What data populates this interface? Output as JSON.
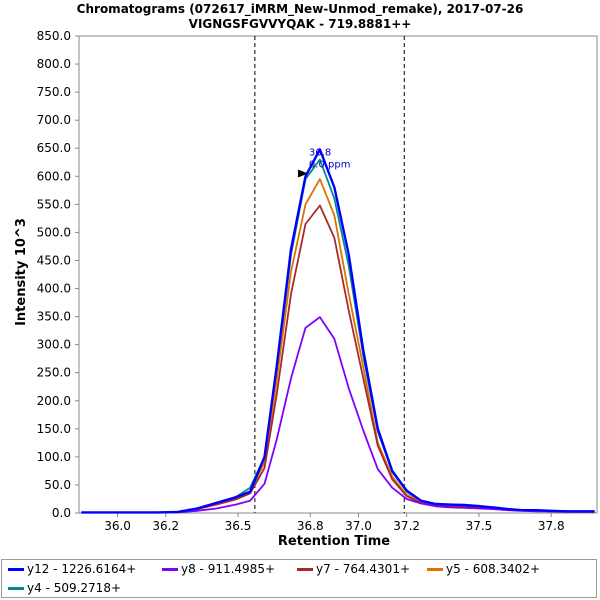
{
  "chart_data": {
    "type": "line",
    "title": "Chromatograms (072617_iMRM_New-Unmod_remake), 2017-07-26",
    "subtitle": "VIGNGSFGVVYQAK - 719.8881++",
    "xlabel": "Retention Time",
    "ylabel": "Intensity 10^3",
    "xlim": [
      35.84,
      37.99
    ],
    "ylim": [
      0,
      850
    ],
    "x_ticks": [
      "36.0",
      "36.2",
      "36.5",
      "36.8",
      "37.0",
      "37.2",
      "37.5",
      "37.8"
    ],
    "x_tick_values": [
      36.0,
      36.2,
      36.5,
      36.8,
      37.0,
      37.2,
      37.5,
      37.8
    ],
    "y_ticks": [
      "0.0",
      "50.0",
      "100.0",
      "150.0",
      "200.0",
      "250.0",
      "300.0",
      "350.0",
      "400.0",
      "450.0",
      "500.0",
      "550.0",
      "600.0",
      "650.0",
      "700.0",
      "750.0",
      "800.0",
      "850.0"
    ],
    "y_tick_values": [
      0,
      50,
      100,
      150,
      200,
      250,
      300,
      350,
      400,
      450,
      500,
      550,
      600,
      650,
      700,
      750,
      800,
      850
    ],
    "vlines": [
      36.57,
      37.19
    ],
    "grid": false,
    "annotation": {
      "x": 36.84,
      "y": 605,
      "lines": [
        "36.8",
        "0.0 ppm"
      ]
    },
    "x": [
      35.85,
      35.93,
      36.01,
      36.09,
      36.17,
      36.25,
      36.33,
      36.41,
      36.49,
      36.55,
      36.61,
      36.66,
      36.72,
      36.78,
      36.84,
      36.9,
      36.96,
      37.02,
      37.08,
      37.14,
      37.2,
      37.26,
      37.32,
      37.38,
      37.44,
      37.5,
      37.56,
      37.62,
      37.68,
      37.74,
      37.8,
      37.86,
      37.92,
      37.98
    ],
    "series": [
      {
        "name": "y12 - 1226.6164+",
        "color": "#0000ff",
        "values": [
          1,
          1,
          1,
          1,
          1,
          2,
          8,
          18,
          28,
          38,
          100,
          260,
          470,
          600,
          648,
          580,
          460,
          290,
          150,
          75,
          40,
          22,
          16,
          15,
          14,
          12,
          10,
          7,
          5,
          5,
          4,
          3,
          3,
          3
        ]
      },
      {
        "name": "y8 - 911.4985+",
        "color": "#8000ff",
        "values": [
          1,
          1,
          1,
          1,
          1,
          1,
          4,
          8,
          15,
          22,
          52,
          130,
          240,
          330,
          349,
          310,
          222,
          147,
          78,
          45,
          25,
          17,
          12,
          10,
          9,
          8,
          7,
          5,
          4,
          3,
          3,
          2,
          2,
          2
        ]
      },
      {
        "name": "y7 - 764.4301+",
        "color": "#a52a2a",
        "values": [
          1,
          1,
          1,
          1,
          1,
          2,
          7,
          15,
          24,
          35,
          80,
          210,
          390,
          515,
          548,
          490,
          360,
          240,
          120,
          60,
          30,
          18,
          13,
          12,
          11,
          10,
          8,
          6,
          5,
          4,
          3,
          3,
          2,
          2
        ]
      },
      {
        "name": "y5 - 608.3402+",
        "color": "#e07000",
        "values": [
          1,
          1,
          1,
          1,
          1,
          2,
          7,
          16,
          26,
          38,
          90,
          235,
          430,
          550,
          595,
          530,
          390,
          260,
          125,
          65,
          32,
          20,
          15,
          13,
          12,
          11,
          9,
          6,
          5,
          4,
          3,
          3,
          2,
          2
        ]
      },
      {
        "name": "y4 - 509.2718+",
        "color": "#008b8b",
        "values": [
          1,
          1,
          1,
          1,
          1,
          2,
          8,
          18,
          28,
          45,
          100,
          250,
          460,
          595,
          630,
          560,
          440,
          280,
          145,
          73,
          38,
          21,
          16,
          15,
          15,
          13,
          10,
          7,
          5,
          5,
          4,
          3,
          3,
          3
        ]
      }
    ]
  }
}
